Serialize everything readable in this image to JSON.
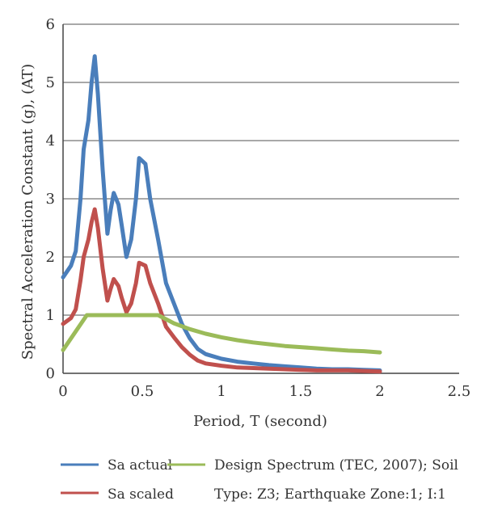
{
  "chart_data": {
    "type": "line",
    "xlabel": "Period, T (second)",
    "ylabel": "Spectral Acceleration Constant (g), (AT)",
    "xlim": [
      0,
      2.5
    ],
    "ylim": [
      0,
      6
    ],
    "x_ticks": [
      "0",
      "0.5",
      "1",
      "1.5",
      "2",
      "2.5"
    ],
    "y_ticks": [
      "0",
      "1",
      "2",
      "3",
      "4",
      "5",
      "6"
    ],
    "grid": "horizontal",
    "legend_position": "bottom",
    "series": [
      {
        "name": "Sa actual",
        "color": "#4a7ebb",
        "points": [
          [
            0,
            1.65
          ],
          [
            0.05,
            1.85
          ],
          [
            0.08,
            2.1
          ],
          [
            0.11,
            3.0
          ],
          [
            0.13,
            3.85
          ],
          [
            0.16,
            4.35
          ],
          [
            0.18,
            5.0
          ],
          [
            0.2,
            5.45
          ],
          [
            0.22,
            4.8
          ],
          [
            0.25,
            3.5
          ],
          [
            0.28,
            2.4
          ],
          [
            0.3,
            2.8
          ],
          [
            0.32,
            3.1
          ],
          [
            0.35,
            2.9
          ],
          [
            0.37,
            2.55
          ],
          [
            0.4,
            2.0
          ],
          [
            0.43,
            2.3
          ],
          [
            0.46,
            3.0
          ],
          [
            0.48,
            3.7
          ],
          [
            0.52,
            3.6
          ],
          [
            0.55,
            3.0
          ],
          [
            0.6,
            2.3
          ],
          [
            0.65,
            1.55
          ],
          [
            0.7,
            1.2
          ],
          [
            0.75,
            0.85
          ],
          [
            0.8,
            0.6
          ],
          [
            0.85,
            0.42
          ],
          [
            0.9,
            0.33
          ],
          [
            1.0,
            0.25
          ],
          [
            1.1,
            0.2
          ],
          [
            1.2,
            0.17
          ],
          [
            1.3,
            0.14
          ],
          [
            1.4,
            0.12
          ],
          [
            1.5,
            0.1
          ],
          [
            1.6,
            0.08
          ],
          [
            1.7,
            0.07
          ],
          [
            1.8,
            0.07
          ],
          [
            1.9,
            0.06
          ],
          [
            2.0,
            0.05
          ]
        ]
      },
      {
        "name": "Sa scaled",
        "color": "#c0504d",
        "points": [
          [
            0,
            0.85
          ],
          [
            0.05,
            0.95
          ],
          [
            0.08,
            1.1
          ],
          [
            0.11,
            1.6
          ],
          [
            0.13,
            2.0
          ],
          [
            0.16,
            2.3
          ],
          [
            0.18,
            2.6
          ],
          [
            0.2,
            2.82
          ],
          [
            0.22,
            2.5
          ],
          [
            0.25,
            1.8
          ],
          [
            0.28,
            1.25
          ],
          [
            0.3,
            1.45
          ],
          [
            0.32,
            1.62
          ],
          [
            0.35,
            1.5
          ],
          [
            0.37,
            1.3
          ],
          [
            0.4,
            1.05
          ],
          [
            0.43,
            1.2
          ],
          [
            0.46,
            1.55
          ],
          [
            0.48,
            1.9
          ],
          [
            0.52,
            1.85
          ],
          [
            0.55,
            1.55
          ],
          [
            0.6,
            1.2
          ],
          [
            0.65,
            0.8
          ],
          [
            0.7,
            0.62
          ],
          [
            0.75,
            0.45
          ],
          [
            0.8,
            0.32
          ],
          [
            0.85,
            0.22
          ],
          [
            0.9,
            0.17
          ],
          [
            1.0,
            0.13
          ],
          [
            1.1,
            0.1
          ],
          [
            1.2,
            0.09
          ],
          [
            1.3,
            0.08
          ],
          [
            1.4,
            0.07
          ],
          [
            1.5,
            0.06
          ],
          [
            1.6,
            0.05
          ],
          [
            1.7,
            0.05
          ],
          [
            1.8,
            0.05
          ],
          [
            1.9,
            0.04
          ],
          [
            2.0,
            0.03
          ]
        ]
      },
      {
        "name": "Design Spectrum (TEC, 2007); Soil Type: Z3; Earthquake Zone:1; I:1",
        "color": "#9bbb59",
        "points": [
          [
            0,
            0.4
          ],
          [
            0.15,
            1.0
          ],
          [
            0.6,
            1.0
          ],
          [
            0.7,
            0.86
          ],
          [
            0.8,
            0.76
          ],
          [
            0.9,
            0.68
          ],
          [
            1.0,
            0.62
          ],
          [
            1.1,
            0.57
          ],
          [
            1.2,
            0.53
          ],
          [
            1.3,
            0.5
          ],
          [
            1.4,
            0.47
          ],
          [
            1.5,
            0.45
          ],
          [
            1.6,
            0.43
          ],
          [
            1.7,
            0.41
          ],
          [
            1.8,
            0.39
          ],
          [
            1.9,
            0.38
          ],
          [
            2.0,
            0.36
          ]
        ]
      }
    ]
  },
  "legend": {
    "sa_actual": "Sa actual",
    "sa_scaled": "Sa scaled",
    "design_line1": "Design Spectrum (TEC, 2007); Soil",
    "design_line2": "Type: Z3; Earthquake Zone:1; I:1"
  }
}
